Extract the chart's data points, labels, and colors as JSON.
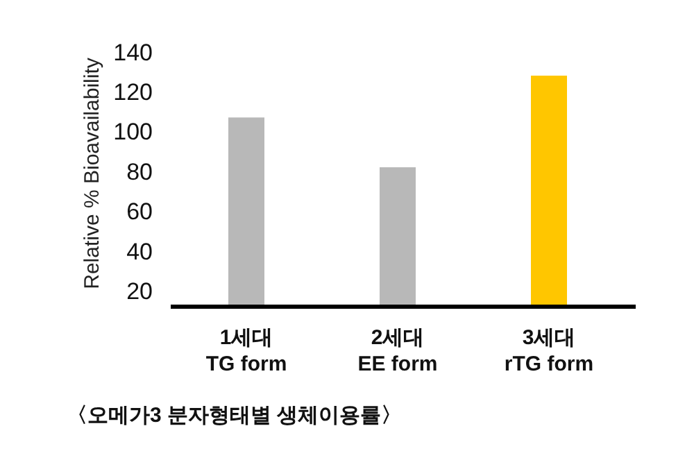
{
  "chart_data": {
    "type": "bar",
    "ylabel": "Relative % Bioavailability",
    "categories": [
      "1세대\nTG form",
      "2세대\nEE form",
      "3세대\nrTG form"
    ],
    "values": [
      107,
      82,
      128
    ],
    "colors": [
      "#b8b8b8",
      "#b8b8b8",
      "#ffc600"
    ],
    "ylim": [
      12,
      140
    ],
    "yticks": [
      20,
      40,
      60,
      80,
      100,
      120,
      140
    ],
    "annotations": [
      "〈오메가3 분자형태별 생체이용률〉"
    ]
  }
}
